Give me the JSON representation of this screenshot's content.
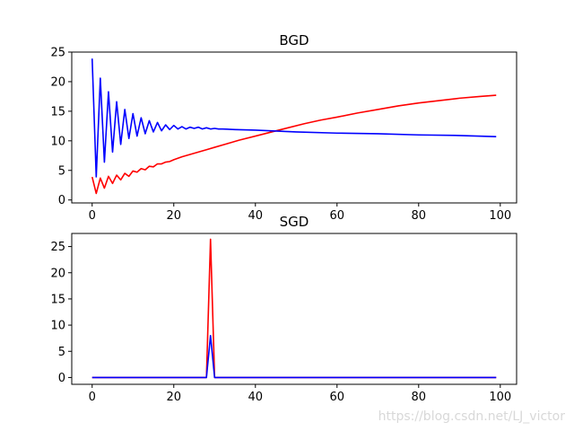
{
  "watermark": "https://blog.csdn.net/LJ_victor",
  "chart_data": [
    {
      "type": "line",
      "title": "BGD",
      "xlabel": "",
      "ylabel": "",
      "xlim": [
        -5,
        104
      ],
      "ylim": [
        -0.5,
        25
      ],
      "xticks": [
        0,
        20,
        40,
        60,
        80,
        100
      ],
      "yticks": [
        0,
        5,
        10,
        15,
        20,
        25
      ],
      "grid": false,
      "series": [
        {
          "color": "#ff0000",
          "x": [
            0,
            1,
            2,
            3,
            4,
            5,
            6,
            7,
            8,
            9,
            10,
            11,
            12,
            13,
            14,
            15,
            16,
            17,
            18,
            19,
            20,
            22,
            24,
            26,
            28,
            30,
            33,
            36,
            40,
            44,
            48,
            52,
            56,
            60,
            65,
            70,
            75,
            80,
            85,
            90,
            95,
            99
          ],
          "y": [
            3.9,
            1.1,
            3.7,
            2.0,
            4.0,
            2.8,
            4.2,
            3.4,
            4.5,
            4.0,
            4.9,
            4.7,
            5.3,
            5.1,
            5.7,
            5.6,
            6.1,
            6.1,
            6.4,
            6.5,
            6.8,
            7.3,
            7.7,
            8.1,
            8.5,
            8.9,
            9.5,
            10.1,
            10.8,
            11.5,
            12.2,
            12.9,
            13.5,
            14.0,
            14.7,
            15.3,
            15.9,
            16.4,
            16.8,
            17.2,
            17.5,
            17.7
          ]
        },
        {
          "color": "#0000ff",
          "x": [
            0,
            1,
            2,
            3,
            4,
            5,
            6,
            7,
            8,
            9,
            10,
            11,
            12,
            13,
            14,
            15,
            16,
            17,
            18,
            19,
            20,
            21,
            22,
            23,
            24,
            25,
            26,
            27,
            28,
            29,
            30,
            31,
            32,
            35,
            40,
            50,
            60,
            70,
            80,
            90,
            99
          ],
          "y": [
            23.9,
            3.9,
            20.6,
            6.4,
            18.3,
            8.1,
            16.6,
            9.4,
            15.3,
            10.4,
            14.6,
            10.8,
            13.9,
            11.2,
            13.4,
            11.5,
            13.1,
            11.7,
            12.7,
            11.9,
            12.6,
            12.0,
            12.4,
            12.0,
            12.3,
            12.1,
            12.3,
            12.0,
            12.2,
            12.0,
            12.1,
            12.0,
            12.0,
            11.9,
            11.8,
            11.5,
            11.3,
            11.2,
            11.0,
            10.9,
            10.7
          ]
        }
      ]
    },
    {
      "type": "line",
      "title": "SGD",
      "xlabel": "",
      "ylabel": "",
      "xlim": [
        -5,
        104
      ],
      "ylim": [
        -1.3,
        27.5
      ],
      "xticks": [
        0,
        20,
        40,
        60,
        80,
        100
      ],
      "yticks": [
        0,
        5,
        10,
        15,
        20,
        25
      ],
      "grid": false,
      "series": [
        {
          "color": "#ff0000",
          "x": [
            0,
            28,
            29,
            30,
            99
          ],
          "y": [
            0,
            0,
            26.4,
            0,
            0
          ]
        },
        {
          "color": "#0000ff",
          "x": [
            0,
            28,
            29,
            30,
            99
          ],
          "y": [
            0,
            0,
            8.0,
            0,
            0
          ]
        }
      ]
    }
  ]
}
